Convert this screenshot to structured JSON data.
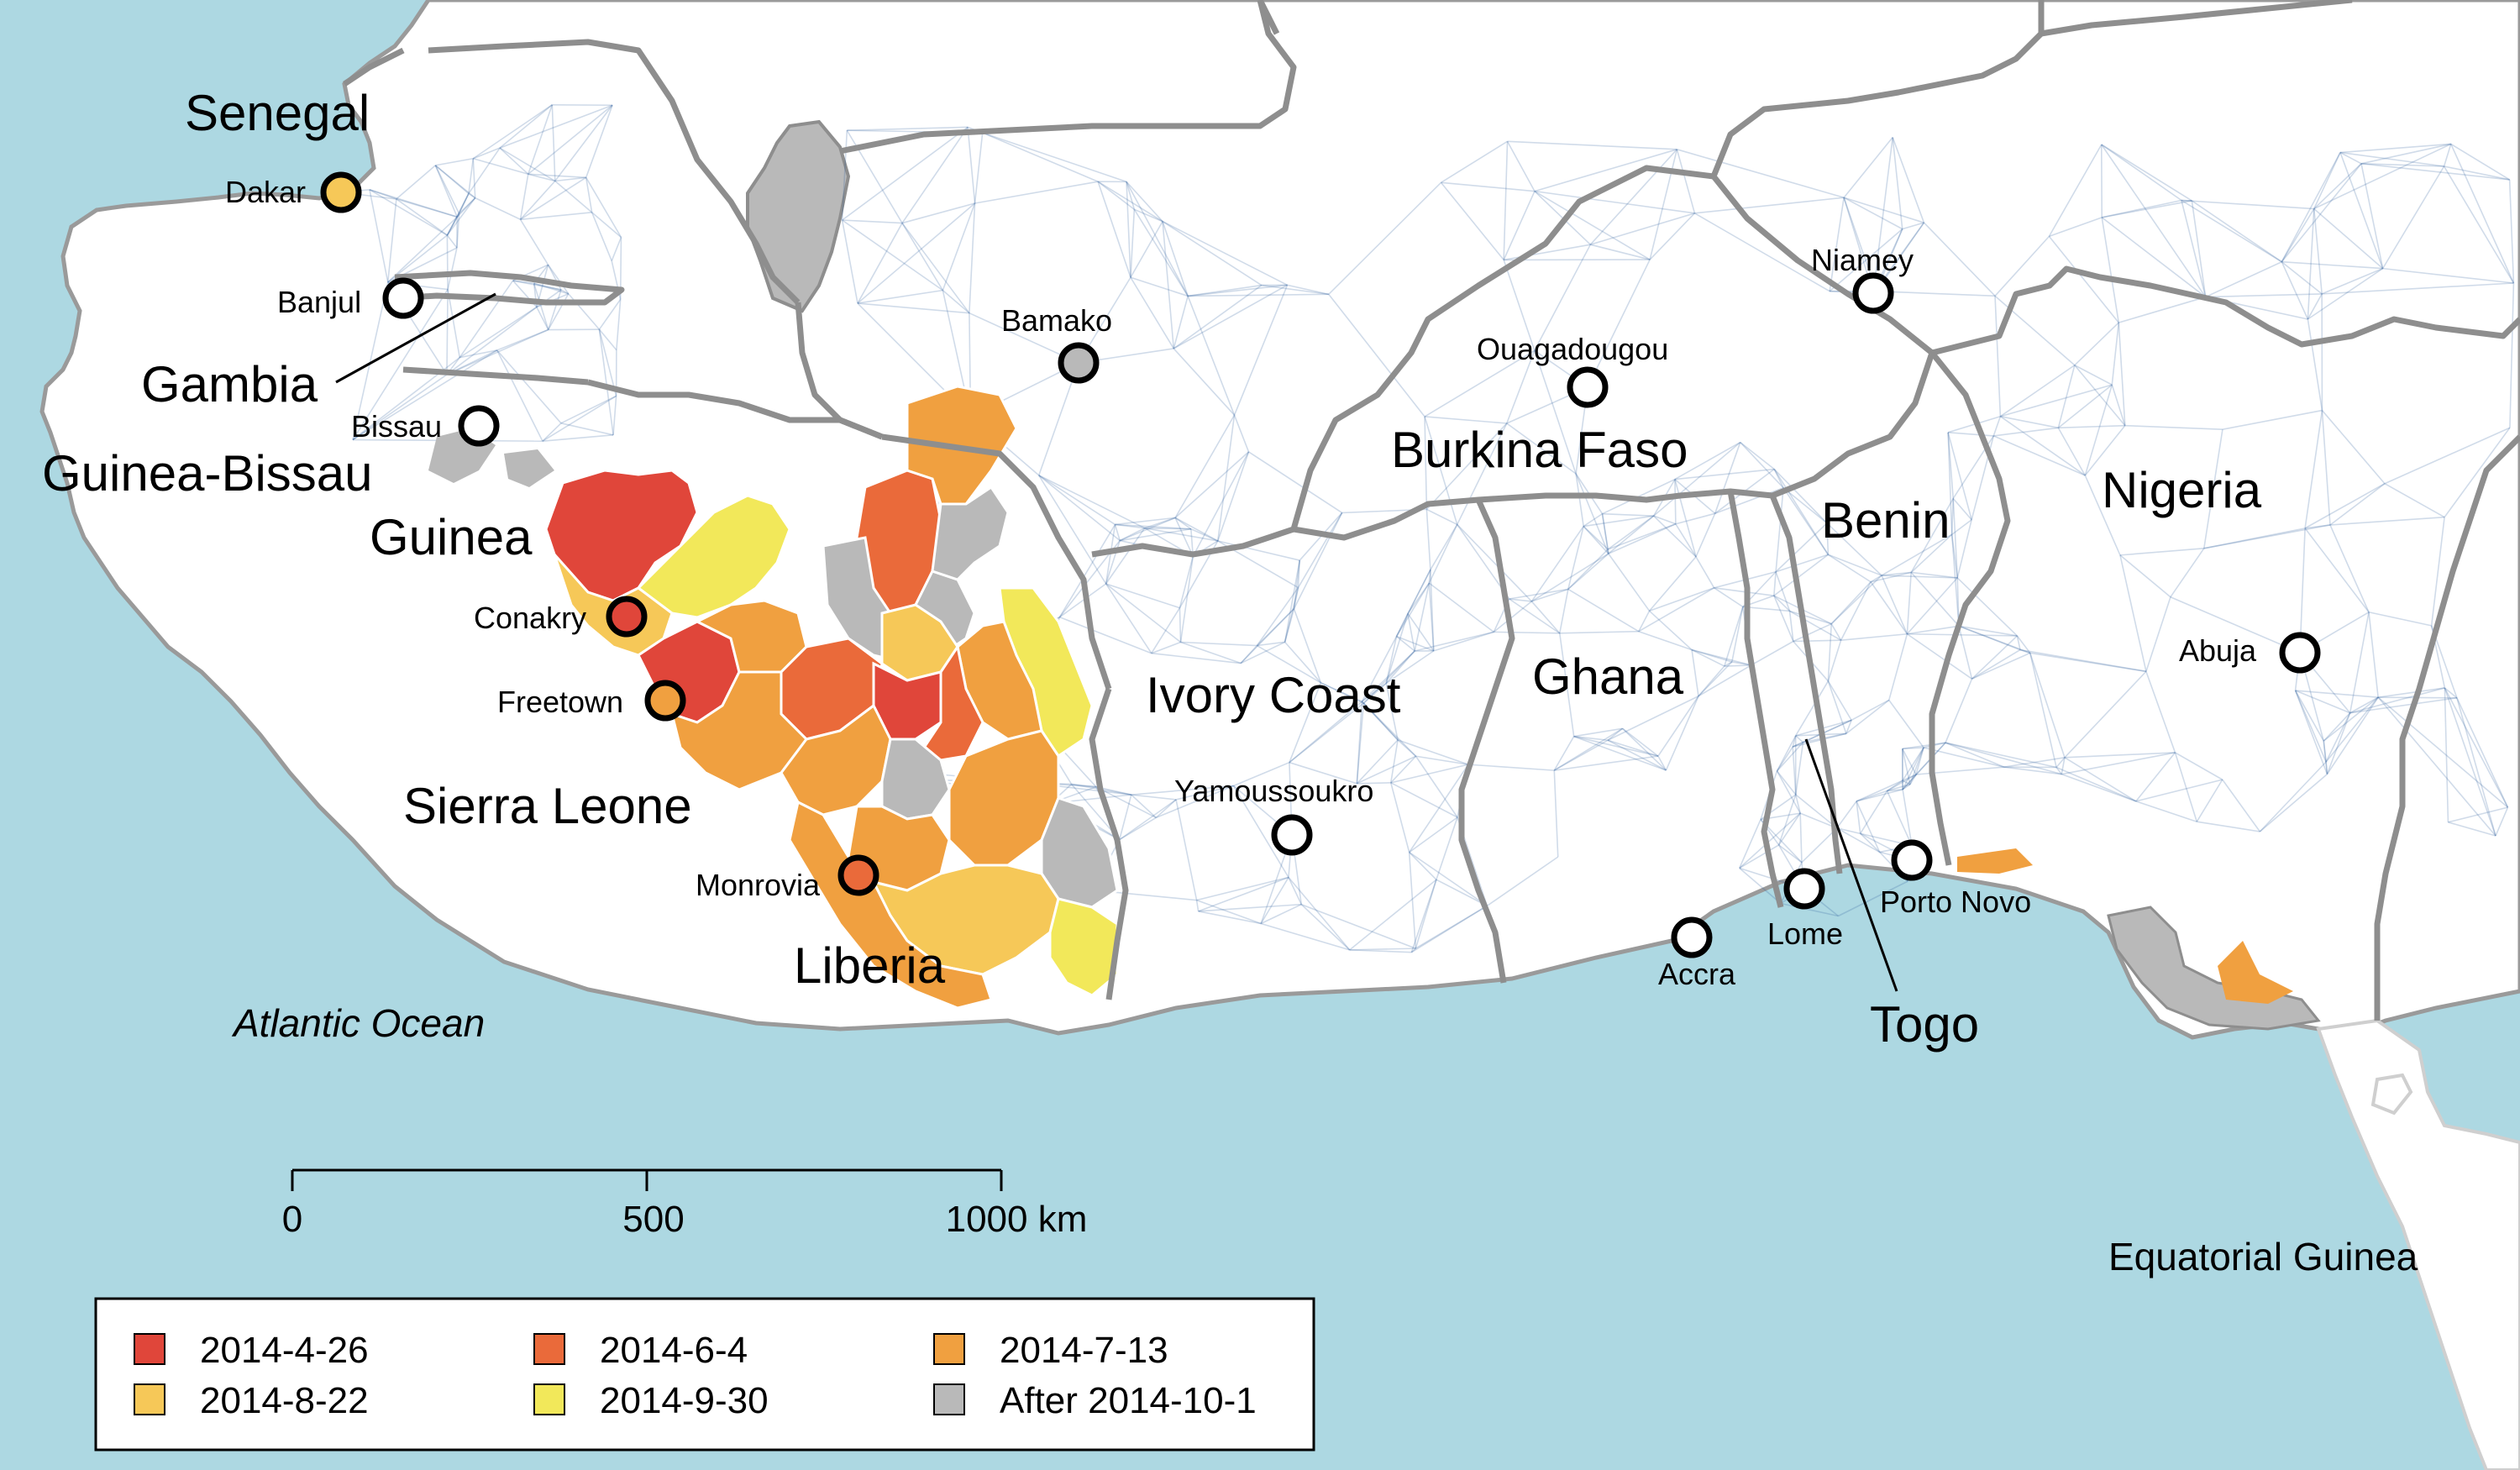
{
  "colors": {
    "ocean": "#add8e2",
    "land": "#ffffff",
    "border": "#8e8e8e",
    "network": "#2a5d9a",
    "date_2014_4_26": "#e0463a",
    "date_2014_6_4": "#ea6a3a",
    "date_2014_7_13": "#f0a040",
    "date_2014_8_22": "#f6c858",
    "date_2014_9_30": "#f2e85a",
    "after_2014_10_1": "#b9b9b9"
  },
  "ocean_labels": {
    "atlantic": "Atlantic Ocean"
  },
  "countries": {
    "senegal": "Senegal",
    "gambia": "Gambia",
    "guinea_bissau": "Guinea-Bissau",
    "guinea": "Guinea",
    "sierra_leone": "Sierra Leone",
    "liberia": "Liberia",
    "ivory_coast": "Ivory Coast",
    "ghana": "Ghana",
    "burkina_faso": "Burkina Faso",
    "benin": "Benin",
    "togo": "Togo",
    "nigeria": "Nigeria",
    "equatorial_guinea": "Equatorial Guinea"
  },
  "cities": {
    "dakar": "Dakar",
    "banjul": "Banjul",
    "bissau": "Bissau",
    "conakry": "Conakry",
    "freetown": "Freetown",
    "monrovia": "Monrovia",
    "bamako": "Bamako",
    "ouagadougou": "Ouagadougou",
    "niamey": "Niamey",
    "yamoussoukro": "Yamoussoukro",
    "accra": "Accra",
    "lome": "Lome",
    "porto_novo": "Porto Novo",
    "abuja": "Abuja"
  },
  "city_status": {
    "dakar": "2014-8-22",
    "conakry": "2014-4-26",
    "freetown": "2014-7-13",
    "monrovia": "2014-6-4",
    "bamako": "After 2014-10-1",
    "banjul": "none",
    "bissau": "none",
    "ouagadougou": "none",
    "niamey": "none",
    "yamoussoukro": "none",
    "accra": "none",
    "lome": "none",
    "porto_novo": "none",
    "abuja": "none"
  },
  "scale_bar": {
    "ticks": [
      "0",
      "500",
      "1000 km"
    ]
  },
  "legend": {
    "items": [
      {
        "label": "2014-4-26",
        "color": "#e0463a"
      },
      {
        "label": "2014-6-4",
        "color": "#ea6a3a"
      },
      {
        "label": "2014-7-13",
        "color": "#f0a040"
      },
      {
        "label": "2014-8-22",
        "color": "#f6c858"
      },
      {
        "label": "2014-9-30",
        "color": "#f2e85a"
      },
      {
        "label": "After 2014-10-1",
        "color": "#b9b9b9"
      }
    ]
  }
}
